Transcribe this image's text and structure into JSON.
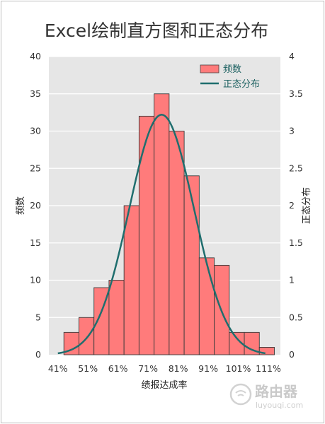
{
  "chart_data": {
    "type": "bar",
    "title": "Excel绘制直方图和正态分布",
    "xlabel": "绩报达成率",
    "ylabel": "频数",
    "y2label": "正态分布",
    "x_tick_labels": [
      "41%",
      "51%",
      "61%",
      "71%",
      "81%",
      "91%",
      "101%",
      "111%"
    ],
    "x_range": [
      38,
      115
    ],
    "ylim": [
      0,
      40
    ],
    "y_ticks": [
      0,
      5,
      10,
      15,
      20,
      25,
      30,
      35,
      40
    ],
    "y2lim": [
      0,
      4
    ],
    "y2_tick_labels": [
      "0",
      "0.5",
      "1",
      "1.5",
      "2",
      "2.5",
      "3",
      "3.5",
      "4"
    ],
    "grid": true,
    "legend_position": "top-right",
    "series": [
      {
        "name": "频数",
        "type": "bar",
        "color": "#ff7b7b",
        "bin_width": 5,
        "bin_starts": [
          43,
          48,
          53,
          58,
          63,
          68,
          73,
          78,
          83,
          88,
          93,
          98,
          103,
          108
        ],
        "values": [
          3,
          5,
          9,
          10,
          20,
          32,
          35,
          30,
          24,
          13,
          12,
          3,
          3,
          1
        ]
      },
      {
        "name": "正态分布",
        "type": "line",
        "color": "#1f6e6e",
        "mean": 75.5,
        "sd": 10.8,
        "peak": 3.22,
        "x_start": 41,
        "x_end": 110
      }
    ]
  },
  "watermark": {
    "name": "路由器",
    "domain": "luyouqi.com"
  }
}
